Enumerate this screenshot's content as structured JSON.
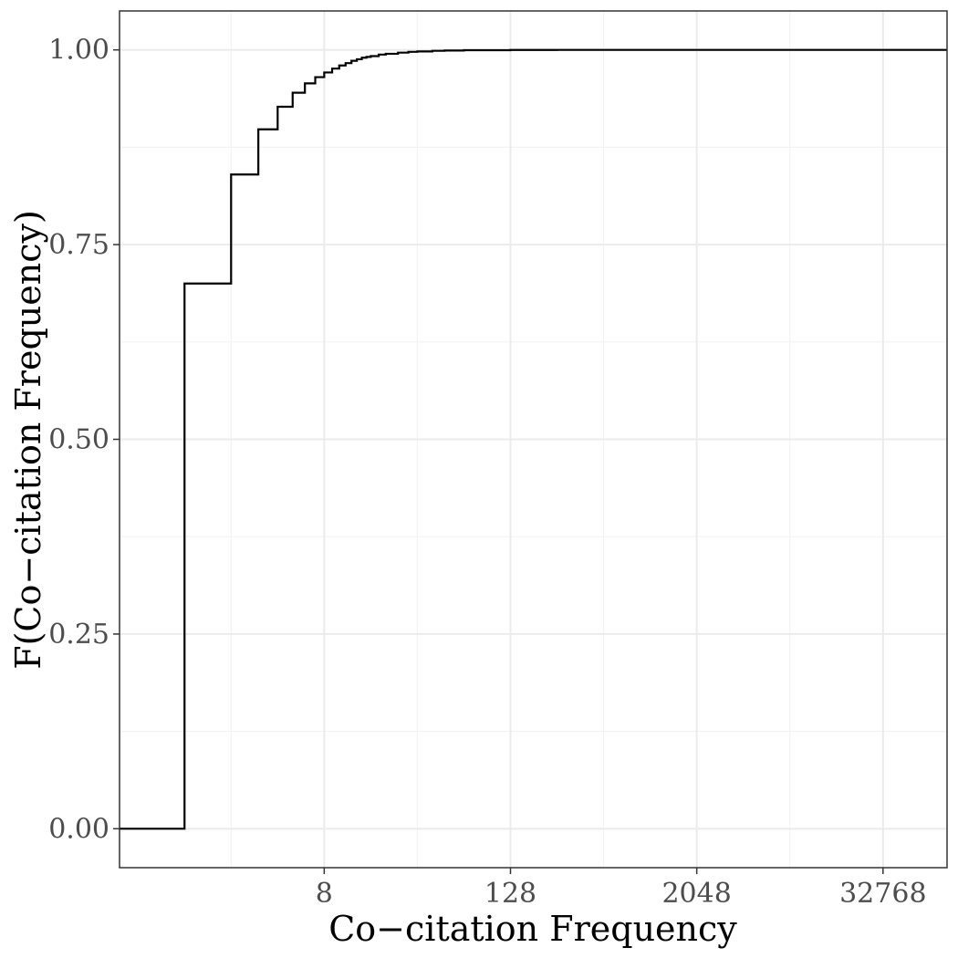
{
  "chart_data": {
    "type": "line",
    "subtype": "ecdf-step",
    "title": "",
    "xlabel": "Co−citation Frequency",
    "ylabel": "F(Co−citation Frequency)",
    "x_scale": "log2",
    "x_ticks": [
      8,
      128,
      2048,
      32768
    ],
    "x_tick_labels": [
      "8",
      "128",
      "2048",
      "32768"
    ],
    "y_ticks": [
      0,
      0.25,
      0.5,
      0.75,
      1.0
    ],
    "y_tick_labels": [
      "0.00",
      "0.25",
      "0.50",
      "0.75",
      "1.00"
    ],
    "xlim": [
      0.38,
      85000
    ],
    "ylim": [
      -0.05,
      1.05
    ],
    "grid": true,
    "legend": "none",
    "series": [
      {
        "color": "#000000",
        "x": [
          1,
          2,
          3,
          4,
          5,
          6,
          7,
          8,
          9,
          10,
          11,
          12,
          13,
          14,
          15,
          16,
          18,
          20,
          24,
          28,
          32,
          40,
          48,
          64,
          128,
          256,
          1024,
          65536
        ],
        "y": [
          0.7,
          0.84,
          0.898,
          0.927,
          0.945,
          0.957,
          0.965,
          0.971,
          0.976,
          0.98,
          0.983,
          0.986,
          0.988,
          0.99,
          0.991,
          0.992,
          0.994,
          0.995,
          0.9965,
          0.9975,
          0.998,
          0.9988,
          0.9992,
          0.9996,
          0.9999,
          1.0,
          1.0,
          1.0
        ]
      }
    ]
  }
}
